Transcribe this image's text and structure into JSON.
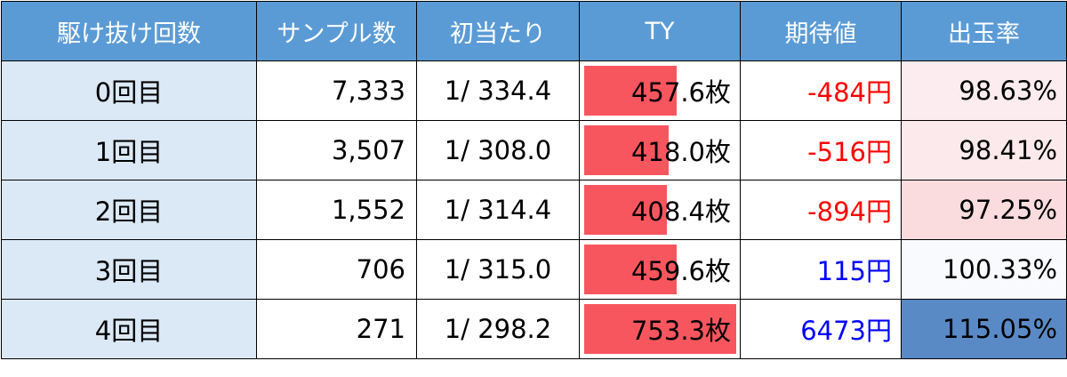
{
  "chart_data": {
    "type": "table",
    "columns": [
      "駆け抜け回数",
      "サンプル数",
      "初当たり",
      "TY",
      "期待値",
      "出玉率"
    ],
    "rows": [
      {
        "label": "0回目",
        "samples": "7,333",
        "hit_rate": "1/ 334.4",
        "ty": "457.6枚",
        "ty_value": 457.6,
        "ev": "-484円",
        "ev_value": -484,
        "rate": "98.63%",
        "rate_value": 98.63
      },
      {
        "label": "1回目",
        "samples": "3,507",
        "hit_rate": "1/ 308.0",
        "ty": "418.0枚",
        "ty_value": 418.0,
        "ev": "-516円",
        "ev_value": -516,
        "rate": "98.41%",
        "rate_value": 98.41
      },
      {
        "label": "2回目",
        "samples": "1,552",
        "hit_rate": "1/ 314.4",
        "ty": "408.4枚",
        "ty_value": 408.4,
        "ev": "-894円",
        "ev_value": -894,
        "rate": "97.25%",
        "rate_value": 97.25
      },
      {
        "label": "3回目",
        "samples": "706",
        "hit_rate": "1/ 315.0",
        "ty": "459.6枚",
        "ty_value": 459.6,
        "ev": "115円",
        "ev_value": 115,
        "rate": "100.33%",
        "rate_value": 100.33
      },
      {
        "label": "4回目",
        "samples": "271",
        "hit_rate": "1/ 298.2",
        "ty": "753.3枚",
        "ty_value": 753.3,
        "ev": "6473円",
        "ev_value": 6473,
        "rate": "115.05%",
        "rate_value": 115.05
      }
    ],
    "ty_bar_max": 753.3
  },
  "colors": {
    "header_bg": "#5b9bd5",
    "label_bg": "#dbe8f5",
    "ty_bar": "#f8565e",
    "ev_negative": "#ff0000",
    "ev_positive": "#0000ff",
    "rate_low": "#f8696b",
    "rate_mid": "#fcfcff",
    "rate_high": "#5a8ac6"
  }
}
